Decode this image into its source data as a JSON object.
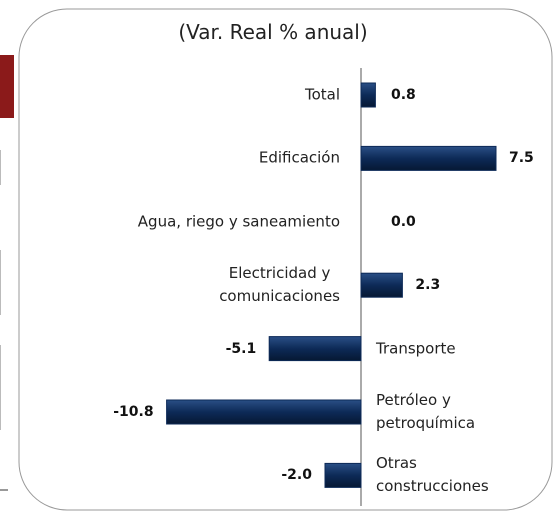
{
  "chart_data": {
    "type": "bar",
    "orientation": "horizontal",
    "title": "(Var. Real % anual)",
    "categories": [
      "Total",
      "Edificación",
      "Agua, riego y saneamiento",
      "Electricidad y\ncomunicaciones",
      "Transporte",
      "Petróleo y\npetroquímica",
      "Otras\nconstrucciones"
    ],
    "values": [
      0.8,
      7.5,
      0.0,
      2.3,
      -5.1,
      -10.8,
      -2.0
    ],
    "value_labels": [
      "0.8",
      "7.5",
      "0.0",
      "2.3",
      "-5.1",
      "-10.8",
      "-2.0"
    ],
    "color": "#0d2a57"
  }
}
